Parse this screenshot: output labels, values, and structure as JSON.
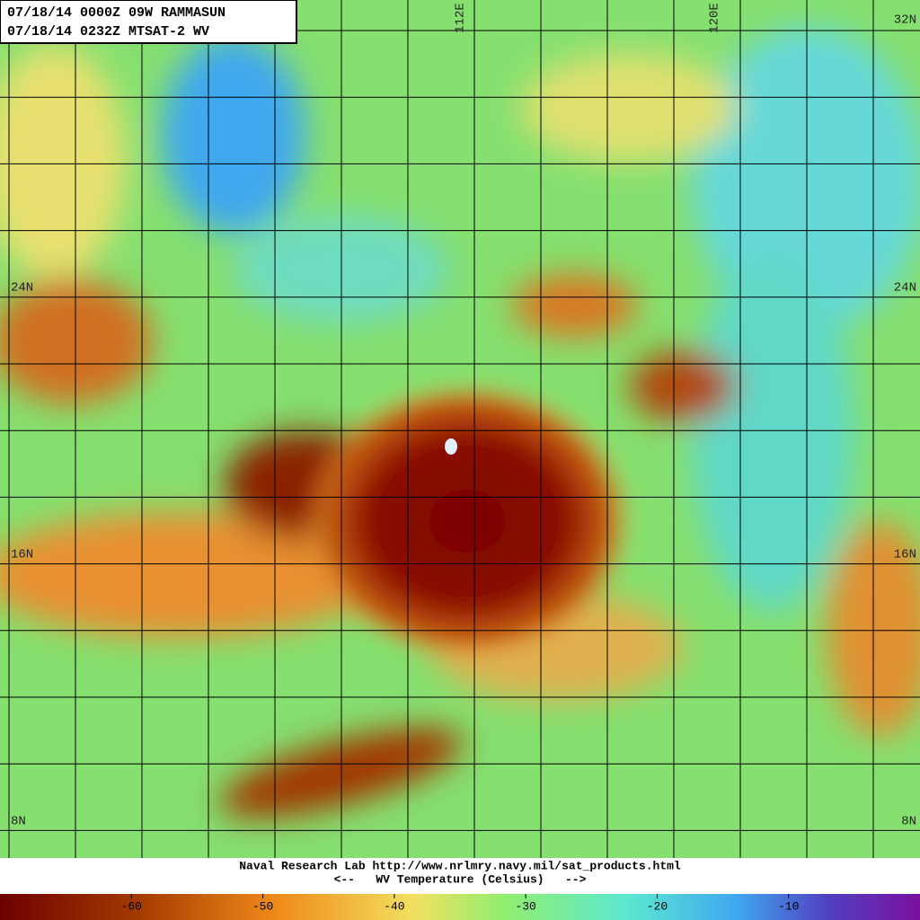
{
  "header": {
    "line1": "07/18/14 0000Z  09W RAMMASUN",
    "line2": "07/18/14 0232Z  MTSAT-2 WV"
  },
  "grid_labels": {
    "lon": [
      "112E",
      "120E"
    ],
    "lat_left": [
      "24N",
      "16N",
      "8N"
    ],
    "lat_right": [
      "32N",
      "24N",
      "16N",
      "8N"
    ]
  },
  "footer": {
    "credit": "Naval Research Lab http://www.nrlmry.navy.mil/sat_products.html",
    "legend_title": "<--   WV Temperature (Celsius)   -->"
  },
  "colorbar": {
    "range": [
      -70,
      0
    ],
    "ticks": [
      -60,
      -50,
      -40,
      -30,
      -20,
      -10
    ]
  }
}
